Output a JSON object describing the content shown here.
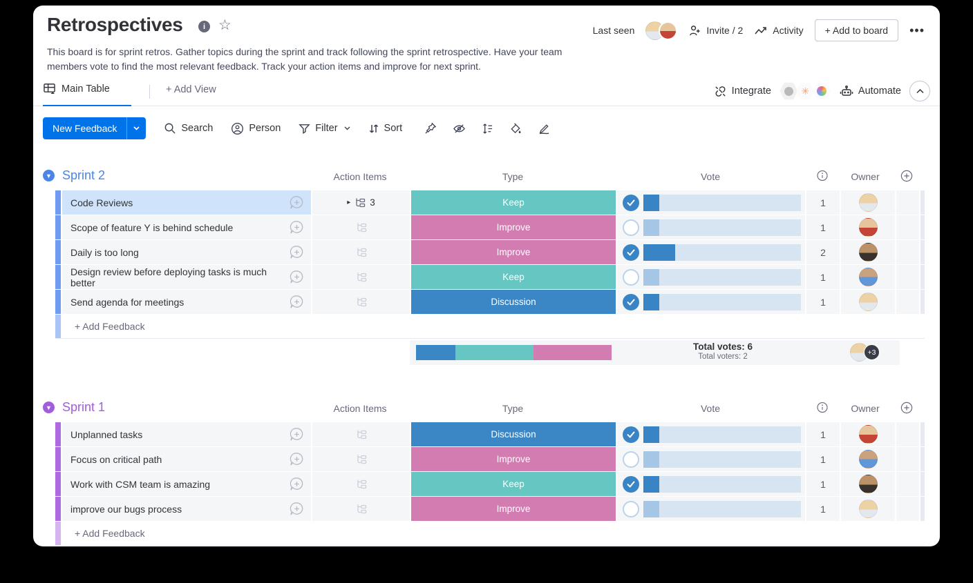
{
  "board": {
    "title": "Retrospectives",
    "description_line1": "This board is for sprint retros. Gather topics during the sprint and track following the sprint retrospective. Have your team",
    "description_line2": "members vote to find the most relevant feedback. Track your action items and improve for next sprint.",
    "last_seen_label": "Last seen",
    "invite_label": "Invite / 2",
    "activity_label": "Activity",
    "add_to_board_label": "+ Add to board"
  },
  "icons": {
    "more": "•••",
    "caret": "▸",
    "group_chevron": "▼"
  },
  "views": {
    "main_table_label": "Main Table",
    "add_view_label": "+ Add View",
    "integrate_label": "Integrate",
    "automate_label": "Automate"
  },
  "toolbar": {
    "new_item_label": "New Feedback",
    "search_label": "Search",
    "person_label": "Person",
    "filter_label": "Filter",
    "sort_label": "Sort"
  },
  "table": {
    "columns": {
      "action_items": "Action Items",
      "type": "Type",
      "vote": "Vote",
      "owner": "Owner"
    }
  },
  "type_styles": {
    "Keep": "#66c6c2",
    "Improve": "#d37cb2",
    "Discussion": "#3b86c5"
  },
  "vote_colors": {
    "checked_fill": "#3984c5",
    "unchecked_fill": "#a6c6e5",
    "track": "#d7e4f1"
  },
  "people": {
    "p1": {
      "label": "blonde woman avatar",
      "colors": [
        "#ecd2a4",
        "#e3e7ee"
      ]
    },
    "p2": {
      "label": "woman in red avatar",
      "colors": [
        "#e7c59c",
        "#c44436"
      ]
    },
    "p3": {
      "label": "bald man with glasses avatar",
      "colors": [
        "#bb9268",
        "#39322c"
      ]
    },
    "p4": {
      "label": "smiling man avatar",
      "colors": [
        "#caa37e",
        "#5f97d8"
      ]
    }
  },
  "add_feedback_label": "+ Add Feedback",
  "groups": [
    {
      "name": "Sprint 2",
      "color": "#4c85e8",
      "bar_color": "#6f9bf0",
      "bar_light": "#aac4f6",
      "rows": [
        {
          "name": "Code Reviews",
          "selected": true,
          "subitems_count": "3",
          "type": "Keep",
          "voted": true,
          "votes": 1,
          "avatar": "p1"
        },
        {
          "name": "Scope of feature Y is behind schedule",
          "selected": false,
          "subitems_count": null,
          "type": "Improve",
          "voted": false,
          "votes": 1,
          "avatar": "p2"
        },
        {
          "name": "Daily is too long",
          "selected": false,
          "subitems_count": null,
          "type": "Improve",
          "voted": true,
          "votes": 2,
          "avatar": "p3"
        },
        {
          "name": "Design review before deploying tasks is much better",
          "selected": false,
          "subitems_count": null,
          "type": "Keep",
          "voted": false,
          "votes": 1,
          "avatar": "p4"
        },
        {
          "name": "Send agenda for meetings",
          "selected": false,
          "subitems_count": null,
          "type": "Discussion",
          "voted": true,
          "votes": 1,
          "avatar": "p1"
        }
      ],
      "summary": {
        "total_votes_label": "Total votes: 6",
        "total_voters_label": "Total voters: 2",
        "distribution": [
          {
            "type": "Discussion",
            "percent": 20
          },
          {
            "type": "Keep",
            "percent": 40
          },
          {
            "type": "Improve",
            "percent": 40
          }
        ],
        "avatar": "p1",
        "more_voters_badge": "+3"
      }
    },
    {
      "name": "Sprint 1",
      "color": "#a25ddc",
      "bar_color": "#ae6be0",
      "bar_light": "#d5b5f0",
      "rows": [
        {
          "name": "Unplanned tasks",
          "selected": false,
          "subitems_count": null,
          "type": "Discussion",
          "voted": true,
          "votes": 1,
          "avatar": "p2"
        },
        {
          "name": "Focus on critical path",
          "selected": false,
          "subitems_count": null,
          "type": "Improve",
          "voted": false,
          "votes": 1,
          "avatar": "p4"
        },
        {
          "name": "Work with CSM team is amazing",
          "selected": false,
          "subitems_count": null,
          "type": "Keep",
          "voted": true,
          "votes": 1,
          "avatar": "p3"
        },
        {
          "name": "improve our bugs process",
          "selected": false,
          "subitems_count": null,
          "type": "Improve",
          "voted": false,
          "votes": 1,
          "avatar": "p1"
        }
      ],
      "summary": null
    }
  ]
}
